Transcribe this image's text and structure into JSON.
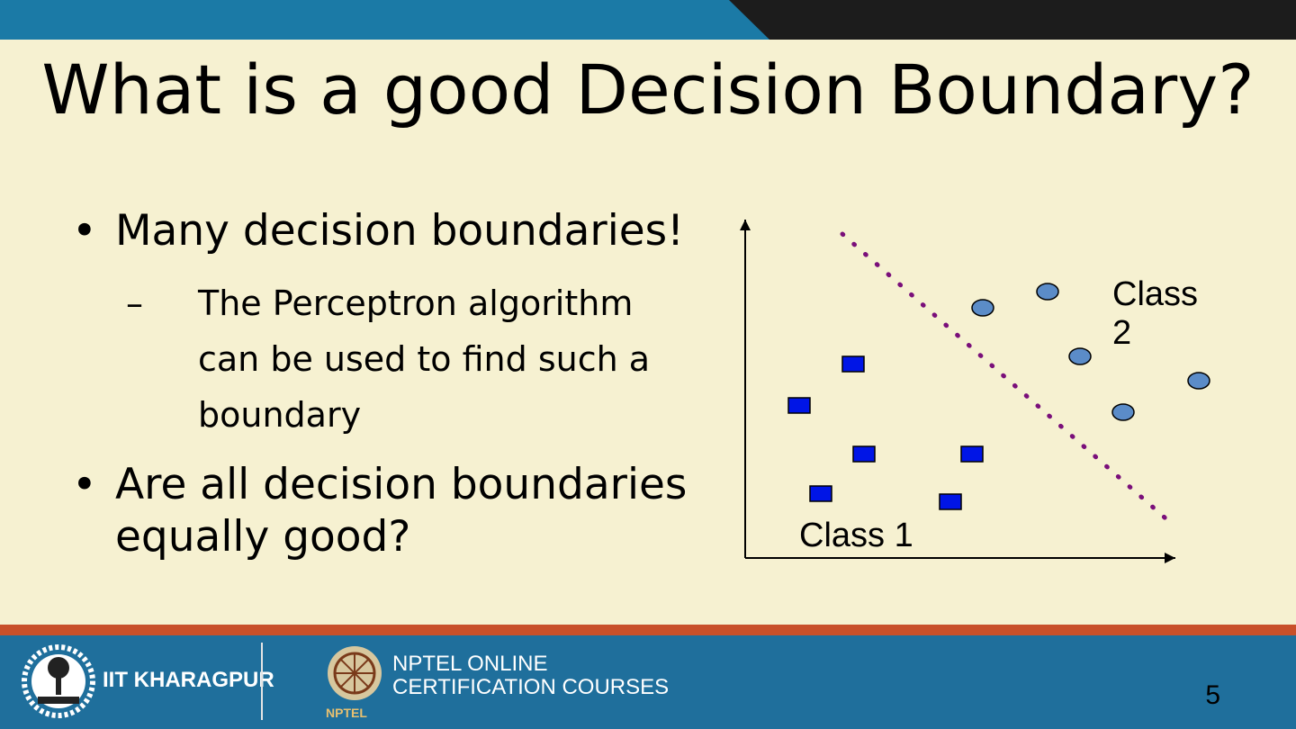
{
  "slide": {
    "title": "What is a good Decision Boundary?",
    "bullets": [
      {
        "text": "Many decision boundaries!"
      },
      {
        "text": "Are all decision boundaries equally good?"
      }
    ],
    "sub_bullets": [
      {
        "text": "The Perceptron algorithm can be used to find such a boundary"
      }
    ],
    "page_number": "5"
  },
  "diagram": {
    "class1_label": "Class 1",
    "class2_label": "Class 2",
    "class1_color": "#0015e6",
    "class2_color": "#5b8cc8",
    "boundary_color": "#7a0f7a"
  },
  "footer": {
    "org1": "IIT KHARAGPUR",
    "org2_line1": "NPTEL ONLINE",
    "org2_line2": "CERTIFICATION COURSES",
    "org2_logo_text": "NPTEL",
    "accent_color": "#c8502a",
    "footer_color": "#1f6f9c"
  }
}
